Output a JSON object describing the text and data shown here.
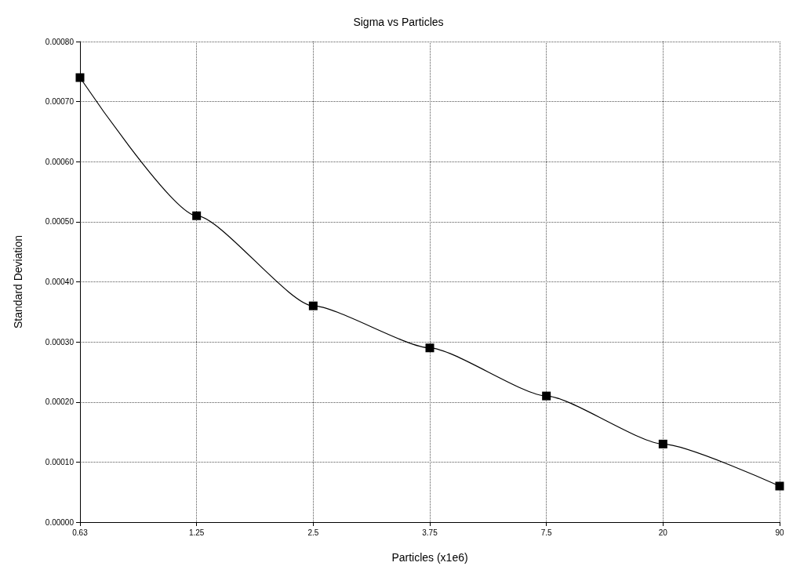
{
  "chart_data": {
    "type": "line",
    "title": "Sigma vs Particles",
    "xlabel": "Particles (x1e6)",
    "ylabel": "Standard Deviation",
    "categories": [
      "0.63",
      "1.25",
      "2.5",
      "3.75",
      "7.5",
      "20",
      "90"
    ],
    "series": [
      {
        "color": "#000000",
        "values": [
          0.00074,
          0.00051,
          0.00036,
          0.00029,
          0.00021,
          0.00013,
          6e-05
        ]
      }
    ],
    "ylim": [
      0,
      0.0008
    ],
    "yticks": [
      {
        "value": 0,
        "label": "0.00000"
      },
      {
        "value": 0.0001,
        "label": "0.00010"
      },
      {
        "value": 0.0002,
        "label": "0.00020"
      },
      {
        "value": 0.0003,
        "label": "0.00030"
      },
      {
        "value": 0.0004,
        "label": "0.00040"
      },
      {
        "value": 0.0005,
        "label": "0.00050"
      },
      {
        "value": 0.0006,
        "label": "0.00060"
      },
      {
        "value": 0.0007,
        "label": "0.00070"
      },
      {
        "value": 0.0008,
        "label": "0.00080"
      }
    ],
    "grid": true,
    "marker": "square",
    "line_style": "solid"
  }
}
